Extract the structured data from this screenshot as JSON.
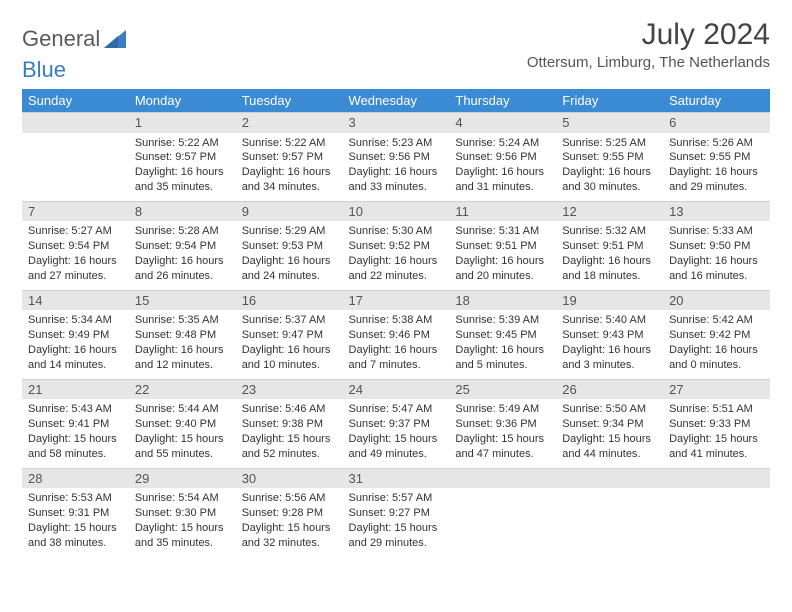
{
  "brand": {
    "part1": "General",
    "part2": "Blue"
  },
  "title": "July 2024",
  "location": "Ottersum, Limburg, The Netherlands",
  "colors": {
    "header_bg": "#3b8bd4",
    "header_text": "#ffffff",
    "daynum_bg": "#e6e6e6",
    "brand_gray": "#5a5a5a",
    "brand_blue": "#3b7cc4"
  },
  "dow": [
    "Sunday",
    "Monday",
    "Tuesday",
    "Wednesday",
    "Thursday",
    "Friday",
    "Saturday"
  ],
  "weeks": [
    [
      {
        "n": "",
        "sr": "",
        "ss": "",
        "d1": "",
        "d2": ""
      },
      {
        "n": "1",
        "sr": "Sunrise: 5:22 AM",
        "ss": "Sunset: 9:57 PM",
        "d1": "Daylight: 16 hours",
        "d2": "and 35 minutes."
      },
      {
        "n": "2",
        "sr": "Sunrise: 5:22 AM",
        "ss": "Sunset: 9:57 PM",
        "d1": "Daylight: 16 hours",
        "d2": "and 34 minutes."
      },
      {
        "n": "3",
        "sr": "Sunrise: 5:23 AM",
        "ss": "Sunset: 9:56 PM",
        "d1": "Daylight: 16 hours",
        "d2": "and 33 minutes."
      },
      {
        "n": "4",
        "sr": "Sunrise: 5:24 AM",
        "ss": "Sunset: 9:56 PM",
        "d1": "Daylight: 16 hours",
        "d2": "and 31 minutes."
      },
      {
        "n": "5",
        "sr": "Sunrise: 5:25 AM",
        "ss": "Sunset: 9:55 PM",
        "d1": "Daylight: 16 hours",
        "d2": "and 30 minutes."
      },
      {
        "n": "6",
        "sr": "Sunrise: 5:26 AM",
        "ss": "Sunset: 9:55 PM",
        "d1": "Daylight: 16 hours",
        "d2": "and 29 minutes."
      }
    ],
    [
      {
        "n": "7",
        "sr": "Sunrise: 5:27 AM",
        "ss": "Sunset: 9:54 PM",
        "d1": "Daylight: 16 hours",
        "d2": "and 27 minutes."
      },
      {
        "n": "8",
        "sr": "Sunrise: 5:28 AM",
        "ss": "Sunset: 9:54 PM",
        "d1": "Daylight: 16 hours",
        "d2": "and 26 minutes."
      },
      {
        "n": "9",
        "sr": "Sunrise: 5:29 AM",
        "ss": "Sunset: 9:53 PM",
        "d1": "Daylight: 16 hours",
        "d2": "and 24 minutes."
      },
      {
        "n": "10",
        "sr": "Sunrise: 5:30 AM",
        "ss": "Sunset: 9:52 PM",
        "d1": "Daylight: 16 hours",
        "d2": "and 22 minutes."
      },
      {
        "n": "11",
        "sr": "Sunrise: 5:31 AM",
        "ss": "Sunset: 9:51 PM",
        "d1": "Daylight: 16 hours",
        "d2": "and 20 minutes."
      },
      {
        "n": "12",
        "sr": "Sunrise: 5:32 AM",
        "ss": "Sunset: 9:51 PM",
        "d1": "Daylight: 16 hours",
        "d2": "and 18 minutes."
      },
      {
        "n": "13",
        "sr": "Sunrise: 5:33 AM",
        "ss": "Sunset: 9:50 PM",
        "d1": "Daylight: 16 hours",
        "d2": "and 16 minutes."
      }
    ],
    [
      {
        "n": "14",
        "sr": "Sunrise: 5:34 AM",
        "ss": "Sunset: 9:49 PM",
        "d1": "Daylight: 16 hours",
        "d2": "and 14 minutes."
      },
      {
        "n": "15",
        "sr": "Sunrise: 5:35 AM",
        "ss": "Sunset: 9:48 PM",
        "d1": "Daylight: 16 hours",
        "d2": "and 12 minutes."
      },
      {
        "n": "16",
        "sr": "Sunrise: 5:37 AM",
        "ss": "Sunset: 9:47 PM",
        "d1": "Daylight: 16 hours",
        "d2": "and 10 minutes."
      },
      {
        "n": "17",
        "sr": "Sunrise: 5:38 AM",
        "ss": "Sunset: 9:46 PM",
        "d1": "Daylight: 16 hours",
        "d2": "and 7 minutes."
      },
      {
        "n": "18",
        "sr": "Sunrise: 5:39 AM",
        "ss": "Sunset: 9:45 PM",
        "d1": "Daylight: 16 hours",
        "d2": "and 5 minutes."
      },
      {
        "n": "19",
        "sr": "Sunrise: 5:40 AM",
        "ss": "Sunset: 9:43 PM",
        "d1": "Daylight: 16 hours",
        "d2": "and 3 minutes."
      },
      {
        "n": "20",
        "sr": "Sunrise: 5:42 AM",
        "ss": "Sunset: 9:42 PM",
        "d1": "Daylight: 16 hours",
        "d2": "and 0 minutes."
      }
    ],
    [
      {
        "n": "21",
        "sr": "Sunrise: 5:43 AM",
        "ss": "Sunset: 9:41 PM",
        "d1": "Daylight: 15 hours",
        "d2": "and 58 minutes."
      },
      {
        "n": "22",
        "sr": "Sunrise: 5:44 AM",
        "ss": "Sunset: 9:40 PM",
        "d1": "Daylight: 15 hours",
        "d2": "and 55 minutes."
      },
      {
        "n": "23",
        "sr": "Sunrise: 5:46 AM",
        "ss": "Sunset: 9:38 PM",
        "d1": "Daylight: 15 hours",
        "d2": "and 52 minutes."
      },
      {
        "n": "24",
        "sr": "Sunrise: 5:47 AM",
        "ss": "Sunset: 9:37 PM",
        "d1": "Daylight: 15 hours",
        "d2": "and 49 minutes."
      },
      {
        "n": "25",
        "sr": "Sunrise: 5:49 AM",
        "ss": "Sunset: 9:36 PM",
        "d1": "Daylight: 15 hours",
        "d2": "and 47 minutes."
      },
      {
        "n": "26",
        "sr": "Sunrise: 5:50 AM",
        "ss": "Sunset: 9:34 PM",
        "d1": "Daylight: 15 hours",
        "d2": "and 44 minutes."
      },
      {
        "n": "27",
        "sr": "Sunrise: 5:51 AM",
        "ss": "Sunset: 9:33 PM",
        "d1": "Daylight: 15 hours",
        "d2": "and 41 minutes."
      }
    ],
    [
      {
        "n": "28",
        "sr": "Sunrise: 5:53 AM",
        "ss": "Sunset: 9:31 PM",
        "d1": "Daylight: 15 hours",
        "d2": "and 38 minutes."
      },
      {
        "n": "29",
        "sr": "Sunrise: 5:54 AM",
        "ss": "Sunset: 9:30 PM",
        "d1": "Daylight: 15 hours",
        "d2": "and 35 minutes."
      },
      {
        "n": "30",
        "sr": "Sunrise: 5:56 AM",
        "ss": "Sunset: 9:28 PM",
        "d1": "Daylight: 15 hours",
        "d2": "and 32 minutes."
      },
      {
        "n": "31",
        "sr": "Sunrise: 5:57 AM",
        "ss": "Sunset: 9:27 PM",
        "d1": "Daylight: 15 hours",
        "d2": "and 29 minutes."
      },
      {
        "n": "",
        "sr": "",
        "ss": "",
        "d1": "",
        "d2": ""
      },
      {
        "n": "",
        "sr": "",
        "ss": "",
        "d1": "",
        "d2": ""
      },
      {
        "n": "",
        "sr": "",
        "ss": "",
        "d1": "",
        "d2": ""
      }
    ]
  ]
}
